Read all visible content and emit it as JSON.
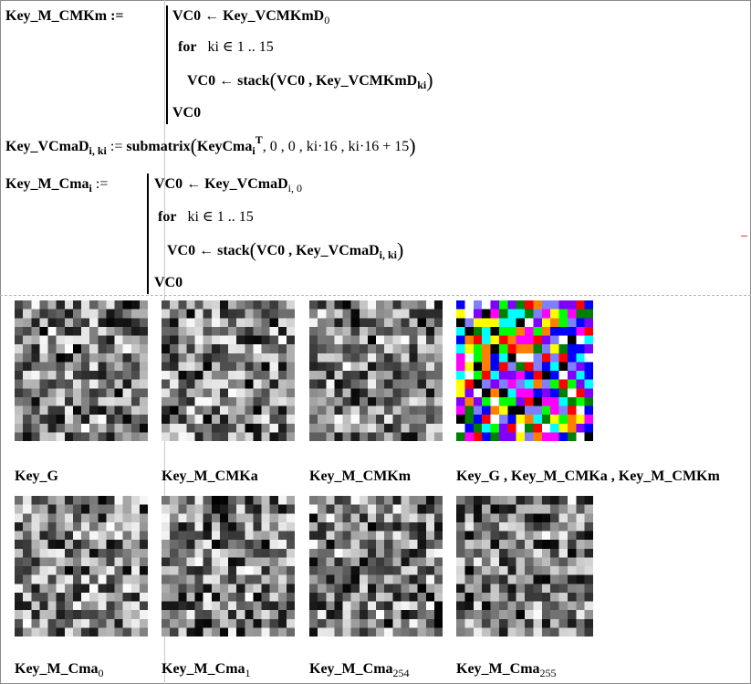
{
  "program1": {
    "lhs": "Key_M_CMKm :=",
    "line1_var": "VC0 ← Key_VCMKmD",
    "line1_sub": "0",
    "line2_for": "for",
    "line2_range": "ki ∈ 1 .. 15",
    "line3_left": "VC0 ← stack",
    "line3_args": "VC0 , Key_VCMKmD",
    "line3_sub": "ki",
    "line4": "VC0"
  },
  "submatrix_def": {
    "lhs": "Key_VCmaD",
    "lhs_sub": "i, ki",
    "assign": ":=",
    "func": "submatrix",
    "arg_base": "KeyCma",
    "arg_base_sub": "i",
    "arg_sup": "T",
    "arg_rest": ", 0 , 0 , ki·16 , ki·16 + 15"
  },
  "program2": {
    "lhs": "Key_M_Cma",
    "lhs_sub": "i",
    "assign": ":=",
    "line1_var": "VC0 ← Key_VCmaD",
    "line1_sub": "i, 0",
    "line2_for": "for",
    "line2_range": "ki ∈ 1 .. 15",
    "line3_left": "VC0 ← stack",
    "line3_args": "VC0 , Key_VCmaD",
    "line3_sub": "i, ki",
    "line4": "VC0"
  },
  "captions_row1": [
    {
      "text": "Key_G",
      "sub": ""
    },
    {
      "text": "Key_M_CMKa",
      "sub": ""
    },
    {
      "text": "Key_M_CMKm",
      "sub": ""
    },
    {
      "text": "Key_G , Key_M_CMKa , Key_M_CMKm",
      "sub": ""
    }
  ],
  "captions_row2": [
    {
      "text": "Key_M_Cma",
      "sub": "0"
    },
    {
      "text": "Key_M_Cma",
      "sub": "1"
    },
    {
      "text": "Key_M_Cma",
      "sub": "254"
    },
    {
      "text": "Key_M_Cma",
      "sub": "255"
    }
  ],
  "images": {
    "grid_size": 16,
    "row1": [
      "gray-noise",
      "gray-noise",
      "gray-noise",
      "rgb-noise"
    ],
    "row2": [
      "gray-noise",
      "gray-noise",
      "gray-noise",
      "gray-noise"
    ]
  },
  "colors": {
    "separator": "#b8b8b8",
    "red_marker": "#e33333",
    "cursor_line": "#c9c9c9"
  }
}
